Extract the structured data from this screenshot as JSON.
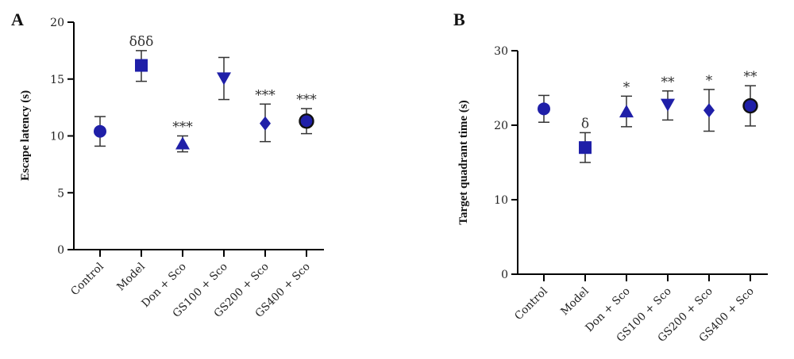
{
  "chart_data": [
    {
      "panel": "A",
      "type": "scatter",
      "ylabel": "Escape latency (s)",
      "ylim": [
        0,
        20
      ],
      "yticks": [
        0,
        5,
        10,
        15,
        20
      ],
      "categories": [
        "Control",
        "Model",
        "Don + Sco",
        "GS100 + Sco",
        "GS200 + Sco",
        "GS400 + Sco"
      ],
      "markers": [
        "circle",
        "square",
        "triangle-up",
        "triangle-down",
        "diamond",
        "circle-outlined"
      ],
      "marker_color": "#1f1fa8",
      "values": [
        10.4,
        16.2,
        9.3,
        15.1,
        11.1,
        11.3
      ],
      "err_low": [
        9.1,
        14.8,
        8.6,
        13.2,
        9.5,
        10.2
      ],
      "err_high": [
        11.7,
        17.5,
        10.0,
        16.9,
        12.8,
        12.4
      ],
      "annotations": [
        "",
        "δδδ",
        "***",
        "",
        "***",
        "***"
      ]
    },
    {
      "panel": "B",
      "type": "scatter",
      "ylabel": "Target quadrant time (s)",
      "ylim": [
        0,
        30
      ],
      "yticks": [
        0,
        10,
        20,
        30
      ],
      "categories": [
        "Control",
        "Model",
        "Don + Sco",
        "GS100 + Sco",
        "GS200 + Sco",
        "GS400 + Sco"
      ],
      "markers": [
        "circle",
        "square",
        "triangle-up",
        "triangle-down",
        "diamond",
        "circle-outlined"
      ],
      "marker_color": "#1f1fa8",
      "values": [
        22.2,
        17.0,
        21.8,
        22.8,
        22.0,
        22.6
      ],
      "err_low": [
        20.4,
        15.0,
        19.8,
        20.7,
        19.2,
        19.9
      ],
      "err_high": [
        24.0,
        19.0,
        23.9,
        24.6,
        24.8,
        25.3
      ],
      "annotations": [
        "",
        "δ",
        "*",
        "**",
        "*",
        "**"
      ]
    }
  ]
}
